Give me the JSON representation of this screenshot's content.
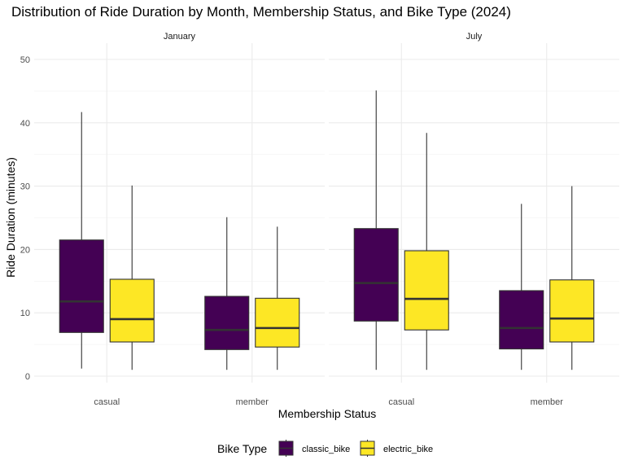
{
  "chart_data": {
    "type": "boxplot",
    "title": "Distribution of Ride Duration by Month, Membership Status, and Bike Type (2024)",
    "xlabel": "Membership Status",
    "ylabel": "Ride Duration (minutes)",
    "ylim": [
      0,
      50
    ],
    "yticks": [
      0,
      10,
      20,
      30,
      40,
      50
    ],
    "categories": [
      "casual",
      "member"
    ],
    "legend": {
      "title": "Bike Type",
      "position": "bottom",
      "entries": [
        {
          "name": "classic_bike",
          "color": "#440154"
        },
        {
          "name": "electric_bike",
          "color": "#fde725"
        }
      ]
    },
    "grid": true,
    "facets": [
      {
        "label": "January",
        "boxes": [
          {
            "category": "casual",
            "bike_type": "classic_bike",
            "min": 1.2,
            "q1": 6.9,
            "median": 11.8,
            "q3": 21.5,
            "max": 41.7
          },
          {
            "category": "casual",
            "bike_type": "electric_bike",
            "min": 1.0,
            "q1": 5.4,
            "median": 9.0,
            "q3": 15.3,
            "max": 30.1
          },
          {
            "category": "member",
            "bike_type": "classic_bike",
            "min": 1.0,
            "q1": 4.2,
            "median": 7.3,
            "q3": 12.6,
            "max": 25.1
          },
          {
            "category": "member",
            "bike_type": "electric_bike",
            "min": 1.0,
            "q1": 4.6,
            "median": 7.6,
            "q3": 12.3,
            "max": 23.6
          }
        ]
      },
      {
        "label": "July",
        "boxes": [
          {
            "category": "casual",
            "bike_type": "classic_bike",
            "min": 1.0,
            "q1": 8.7,
            "median": 14.7,
            "q3": 23.3,
            "max": 45.1
          },
          {
            "category": "casual",
            "bike_type": "electric_bike",
            "min": 1.0,
            "q1": 7.3,
            "median": 12.2,
            "q3": 19.8,
            "max": 38.4
          },
          {
            "category": "member",
            "bike_type": "classic_bike",
            "min": 1.0,
            "q1": 4.3,
            "median": 7.6,
            "q3": 13.5,
            "max": 27.2
          },
          {
            "category": "member",
            "bike_type": "electric_bike",
            "min": 1.0,
            "q1": 5.4,
            "median": 9.1,
            "q3": 15.2,
            "max": 30.0
          }
        ]
      }
    ]
  }
}
